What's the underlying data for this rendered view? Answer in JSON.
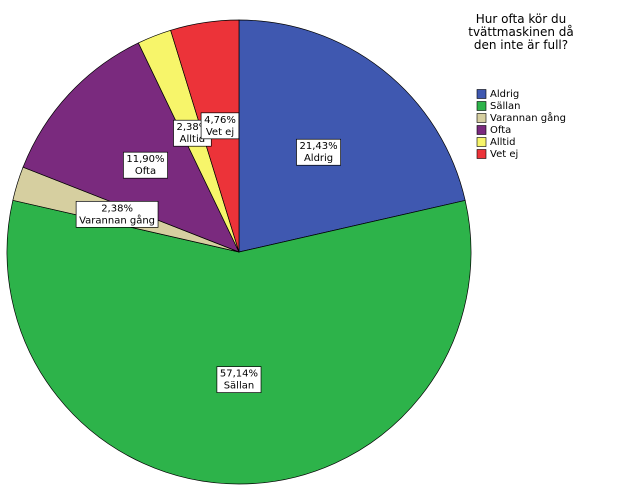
{
  "chart_data": {
    "type": "pie",
    "legend_title": "Hur ofta kör du tvättmaskinen då den inte är full?",
    "categories": [
      "Aldrig",
      "Sällan",
      "Varannan gång",
      "Ofta",
      "Alltid",
      "Vet ej"
    ],
    "values": [
      21.43,
      57.14,
      2.38,
      11.9,
      2.38,
      4.76
    ],
    "value_labels": [
      "21,43%",
      "57,14%",
      "2,38%",
      "11,90%",
      "2,38%",
      "4,76%"
    ],
    "colors": [
      "#3f58b0",
      "#2db34a",
      "#d6cfa0",
      "#7a2a7e",
      "#f7f56a",
      "#ec3339"
    ],
    "legend": "right"
  }
}
